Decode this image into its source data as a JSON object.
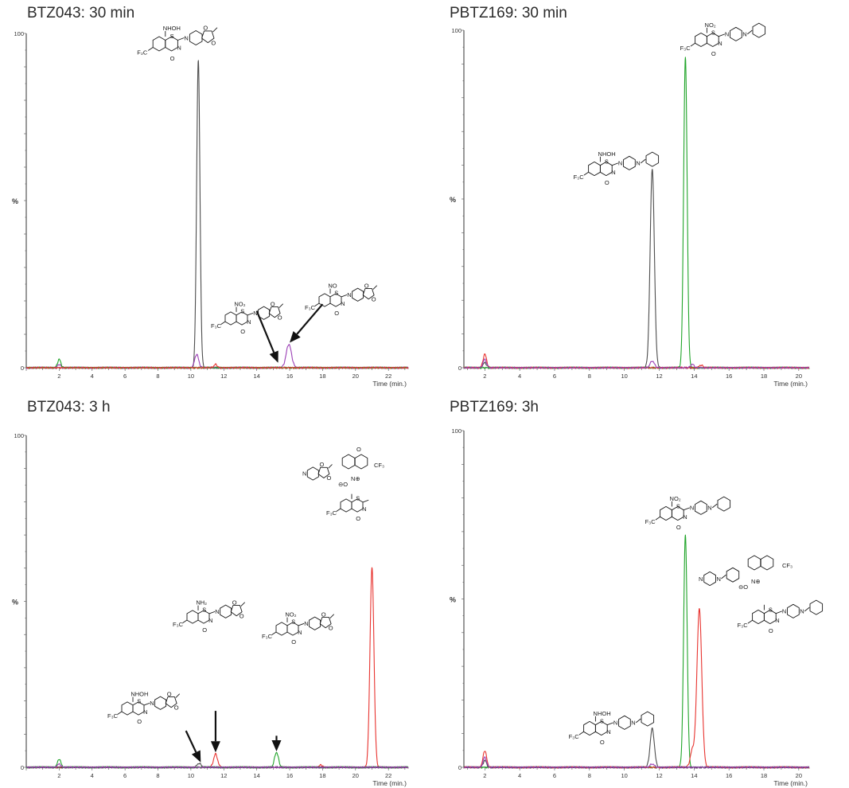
{
  "colors": {
    "black": "#4d4d4d",
    "green": "#22a52b",
    "red": "#e8332f",
    "purple": "#9b3fb5"
  },
  "chart_data": [
    {
      "id": "p1",
      "type": "line",
      "title": "BTZ043: 30 min",
      "ylabel": "%",
      "xlabel": "Time (min.)",
      "xlim": [
        0.0,
        23.2
      ],
      "ylim": [
        0,
        100
      ],
      "x_ticks": [
        2,
        4,
        6,
        8,
        10,
        12,
        14,
        16,
        18,
        20,
        22
      ],
      "y_ticks": [
        0,
        100
      ],
      "series": [
        {
          "color": "#4d4d4d",
          "peaks": [
            [
              10.45,
              92,
              0.1
            ]
          ]
        },
        {
          "color": "#9b3fb5",
          "peaks": [
            [
              10.35,
              4,
              0.12
            ],
            [
              15.95,
              7,
              0.16
            ],
            [
              2.0,
              1,
              0.1
            ]
          ]
        },
        {
          "color": "#22a52b",
          "peaks": [
            [
              2.0,
              2.5,
              0.1
            ]
          ]
        },
        {
          "color": "#e8332f",
          "peaks": [
            [
              11.5,
              1,
              0.1
            ]
          ]
        }
      ],
      "annotations": [
        {
          "text": "NHOH"
        },
        {
          "text": "F₃C"
        },
        {
          "text": "S"
        },
        {
          "text": "N"
        },
        {
          "text": "O"
        },
        {
          "text": "NO₂"
        },
        {
          "text": "NO"
        }
      ],
      "arrows": [
        {
          "from": [
            14.0,
            17.0
          ],
          "to": [
            15.3,
            1.5
          ]
        },
        {
          "from": [
            18.0,
            19.0
          ],
          "to": [
            16.0,
            7.5
          ]
        }
      ]
    },
    {
      "id": "p2",
      "type": "line",
      "title": "PBTZ169: 30 min",
      "ylabel": "%",
      "xlabel": "Time (min.)",
      "xlim": [
        0.8,
        20.6
      ],
      "ylim": [
        0,
        100
      ],
      "x_ticks": [
        2,
        4,
        6,
        8,
        10,
        12,
        14,
        16,
        18,
        20
      ],
      "y_ticks": [
        0,
        100
      ],
      "series": [
        {
          "color": "#4d4d4d",
          "peaks": [
            [
              11.6,
              59,
              0.12
            ],
            [
              2.0,
              1.5,
              0.1
            ]
          ]
        },
        {
          "color": "#22a52b",
          "peaks": [
            [
              13.5,
              92,
              0.1
            ]
          ]
        },
        {
          "color": "#e8332f",
          "peaks": [
            [
              2.0,
              4,
              0.1
            ],
            [
              14.4,
              0.8,
              0.1
            ]
          ]
        },
        {
          "color": "#9b3fb5",
          "peaks": [
            [
              11.6,
              2,
              0.12
            ],
            [
              2.0,
              2.5,
              0.1
            ],
            [
              13.9,
              1,
              0.1
            ]
          ]
        }
      ],
      "annotations": [
        {
          "text": "NO₂"
        },
        {
          "text": "F₃C"
        },
        {
          "text": "NHOH"
        },
        {
          "text": "S"
        },
        {
          "text": "N"
        },
        {
          "text": "O"
        }
      ],
      "arrows": []
    },
    {
      "id": "p3",
      "type": "line",
      "title": "BTZ043: 3 h",
      "ylabel": "%",
      "xlabel": "Time (min.)",
      "xlim": [
        0.0,
        23.2
      ],
      "ylim": [
        0,
        100
      ],
      "x_ticks": [
        2,
        4,
        6,
        8,
        10,
        12,
        14,
        16,
        18,
        20,
        22
      ],
      "y_ticks": [
        0,
        100
      ],
      "series": [
        {
          "color": "#e8332f",
          "peaks": [
            [
              11.5,
              4,
              0.12
            ],
            [
              21.0,
              60,
              0.12
            ],
            [
              17.9,
              0.7,
              0.1
            ]
          ]
        },
        {
          "color": "#22a52b",
          "peaks": [
            [
              2.0,
              2.5,
              0.1
            ],
            [
              15.2,
              4.5,
              0.12
            ]
          ]
        },
        {
          "color": "#4d4d4d",
          "peaks": [
            [
              10.5,
              1.2,
              0.12
            ]
          ]
        },
        {
          "color": "#9b3fb5",
          "peaks": [
            [
              2.0,
              1,
              0.1
            ]
          ]
        }
      ],
      "annotations": [
        {
          "text": "NHOH"
        },
        {
          "text": "NH₂"
        },
        {
          "text": "NO₂"
        },
        {
          "text": "F₃C"
        },
        {
          "text": "CF₃"
        },
        {
          "text": "S"
        },
        {
          "text": "N"
        },
        {
          "text": "O"
        },
        {
          "text": "⊖O"
        },
        {
          "text": "N⊕"
        }
      ],
      "arrows": [
        {
          "from": [
            9.7,
            11.0
          ],
          "to": [
            10.6,
            1.5
          ]
        },
        {
          "from": [
            11.5,
            17.0
          ],
          "to": [
            11.5,
            4.5
          ]
        },
        {
          "from": [
            15.2,
            9.5
          ],
          "to": [
            15.2,
            4.8
          ]
        }
      ]
    },
    {
      "id": "p4",
      "type": "line",
      "title": "PBTZ169: 3h",
      "ylabel": "%",
      "xlabel": "Time (min.)",
      "xlim": [
        0.8,
        20.6
      ],
      "ylim": [
        0,
        100
      ],
      "x_ticks": [
        2,
        4,
        6,
        8,
        10,
        12,
        14,
        16,
        18,
        20
      ],
      "y_ticks": [
        0,
        100
      ],
      "series": [
        {
          "color": "#22a52b",
          "peaks": [
            [
              13.5,
              69,
              0.1
            ]
          ]
        },
        {
          "color": "#e8332f",
          "peaks": [
            [
              14.3,
              47,
              0.14
            ],
            [
              13.9,
              5,
              0.12
            ],
            [
              2.0,
              5,
              0.1
            ]
          ]
        },
        {
          "color": "#4d4d4d",
          "peaks": [
            [
              11.6,
              11.5,
              0.12
            ],
            [
              2.0,
              2,
              0.1
            ]
          ]
        },
        {
          "color": "#9b3fb5",
          "peaks": [
            [
              2.0,
              3,
              0.1
            ],
            [
              11.6,
              1,
              0.12
            ]
          ]
        }
      ],
      "annotations": [
        {
          "text": "NO₂"
        },
        {
          "text": "NHOH"
        },
        {
          "text": "F₃C"
        },
        {
          "text": "CF₃"
        },
        {
          "text": "S"
        },
        {
          "text": "N"
        },
        {
          "text": "O"
        },
        {
          "text": "⊖O"
        },
        {
          "text": "N⊕"
        }
      ],
      "arrows": []
    }
  ]
}
